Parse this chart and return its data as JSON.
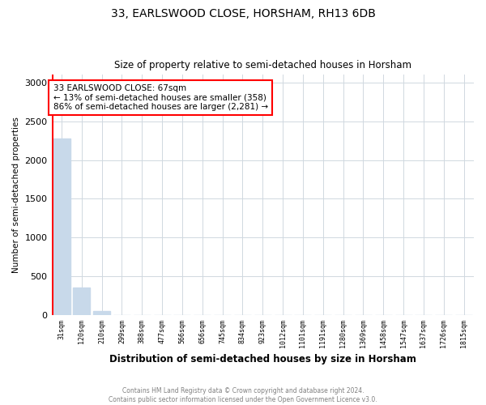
{
  "title": "33, EARLSWOOD CLOSE, HORSHAM, RH13 6DB",
  "subtitle": "Size of property relative to semi-detached houses in Horsham",
  "xlabel": "Distribution of semi-detached houses by size in Horsham",
  "ylabel": "Number of semi-detached properties",
  "categories": [
    "31sqm",
    "120sqm",
    "210sqm",
    "299sqm",
    "388sqm",
    "477sqm",
    "566sqm",
    "656sqm",
    "745sqm",
    "834sqm",
    "923sqm",
    "1012sqm",
    "1101sqm",
    "1191sqm",
    "1280sqm",
    "1369sqm",
    "1458sqm",
    "1547sqm",
    "1637sqm",
    "1726sqm",
    "1815sqm"
  ],
  "values": [
    2281,
    358,
    50,
    2,
    0,
    0,
    0,
    0,
    0,
    0,
    0,
    0,
    0,
    0,
    0,
    0,
    0,
    0,
    0,
    0,
    0
  ],
  "bar_color": "#c8d9ea",
  "annotation_text": "33 EARLSWOOD CLOSE: 67sqm\n← 13% of semi-detached houses are smaller (358)\n86% of semi-detached houses are larger (2,281) →",
  "annotation_box_color": "white",
  "annotation_box_edge_color": "red",
  "property_line_color": "red",
  "ylim": [
    0,
    3100
  ],
  "yticks": [
    0,
    500,
    1000,
    1500,
    2000,
    2500,
    3000
  ],
  "footer_line1": "Contains HM Land Registry data © Crown copyright and database right 2024.",
  "footer_line2": "Contains public sector information licensed under the Open Government Licence v3.0.",
  "background_color": "#ffffff",
  "grid_color": "#d0d8e0"
}
